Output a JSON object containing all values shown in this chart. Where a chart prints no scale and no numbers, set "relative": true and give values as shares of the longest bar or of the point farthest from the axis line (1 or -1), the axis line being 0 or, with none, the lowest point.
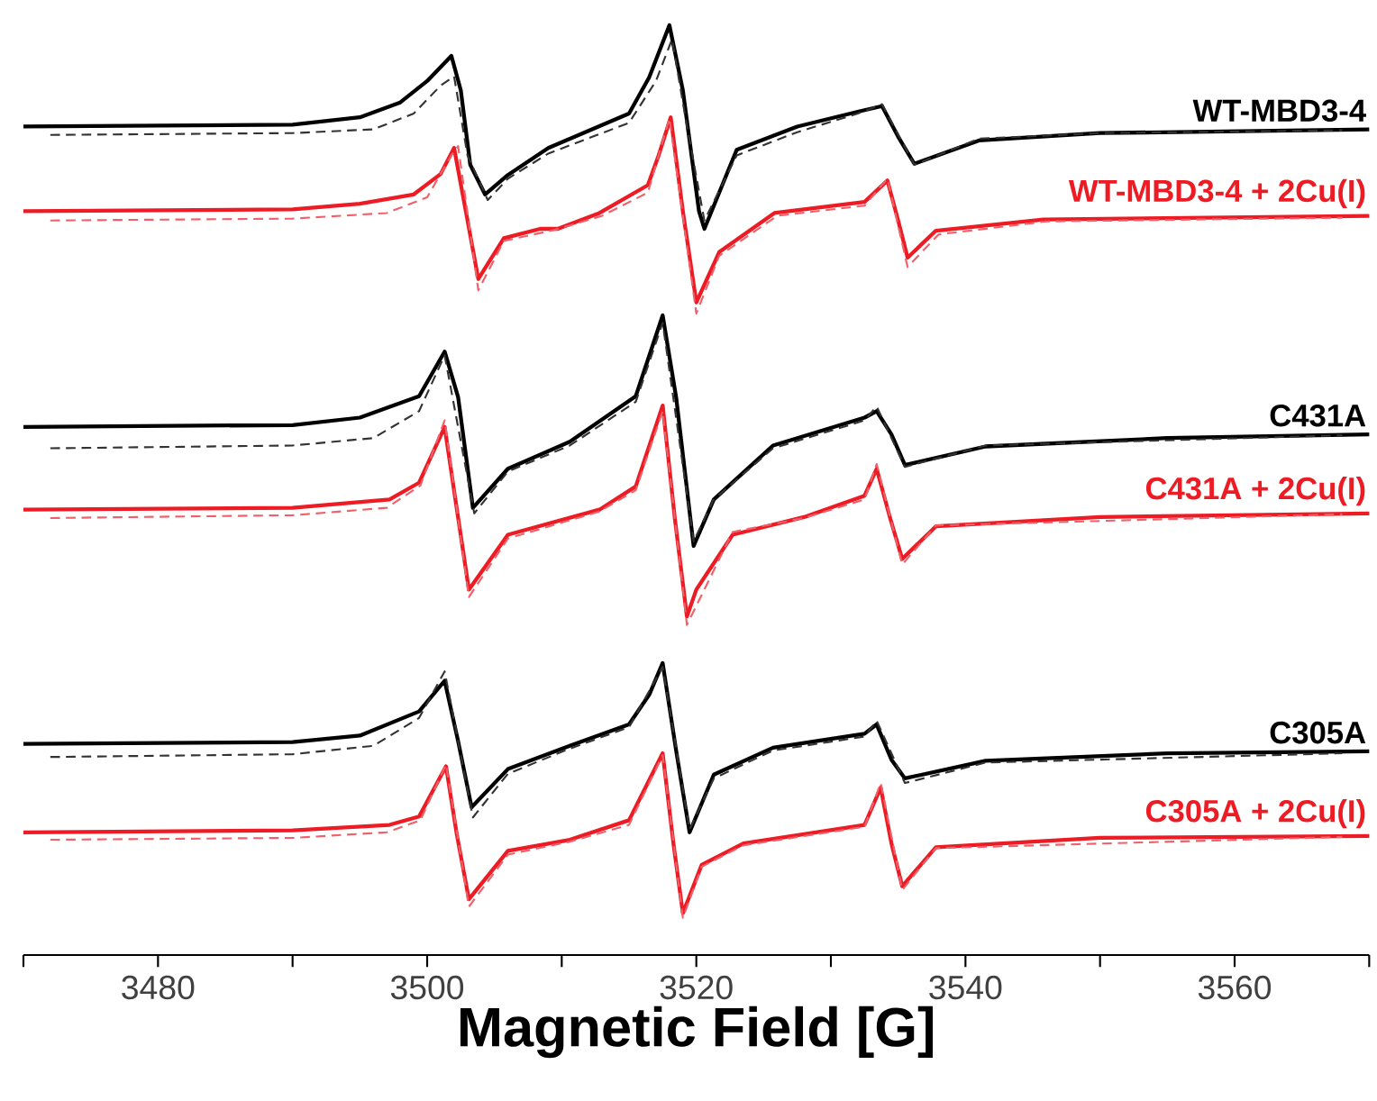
{
  "chart_data": {
    "type": "line",
    "relative": true,
    "xlabel": "Magnetic Field [G]",
    "xlim": [
      3470,
      3570
    ],
    "xticks": [
      {
        "value": 3470,
        "label": null
      },
      3480,
      {
        "value": 3490,
        "label": null
      },
      3500,
      {
        "value": 3510,
        "label": null
      },
      3520,
      {
        "value": 3530,
        "label": null
      },
      3540,
      {
        "value": 3550,
        "label": null
      },
      3560,
      {
        "value": 3570,
        "label": null
      }
    ],
    "series": [
      {
        "name": "WT-MBD3-4",
        "color": "#000000",
        "line_style": "solid",
        "x": [
          3470,
          3490,
          3495,
          3498,
          3500,
          3501.8,
          3502.5,
          3503.2,
          3504.3,
          3506,
          3509,
          3515,
          3516.5,
          3518,
          3519,
          3520.2,
          3520.6,
          3523,
          3527.5,
          3532,
          3533.8,
          3535,
          3536.2,
          3541,
          3550,
          3570
        ],
        "values": [
          0.891,
          0.893,
          0.901,
          0.917,
          0.94,
          0.967,
          0.93,
          0.85,
          0.818,
          0.839,
          0.868,
          0.905,
          0.944,
          1.0,
          0.93,
          0.8,
          0.781,
          0.866,
          0.891,
          0.907,
          0.913,
          0.88,
          0.851,
          0.876,
          0.884,
          0.888
        ]
      },
      {
        "color": "#333333",
        "line_style": "dashed",
        "x": [
          3472,
          3490,
          3496,
          3499,
          3501,
          3502,
          3503,
          3504.5,
          3506,
          3509,
          3515,
          3517,
          3518.2,
          3519.2,
          3520.6,
          3523,
          3527.5,
          3532,
          3533.8,
          3536.2,
          3541,
          3550,
          3568
        ],
        "values": [
          0.882,
          0.884,
          0.888,
          0.905,
          0.935,
          0.945,
          0.86,
          0.812,
          0.835,
          0.862,
          0.895,
          0.94,
          0.985,
          0.9,
          0.79,
          0.86,
          0.885,
          0.905,
          0.915,
          0.85,
          0.878,
          0.884,
          0.887
        ]
      },
      {
        "name": "WT-MBD3-4 + 2Cu(I)",
        "color": "#ed1c24",
        "line_style": "solid",
        "x": [
          3470,
          3490,
          3495,
          3499,
          3501,
          3502,
          3503,
          3503.8,
          3505.7,
          3508.4,
          3509.7,
          3512.8,
          3516.4,
          3517.2,
          3518.1,
          3519,
          3520,
          3521.7,
          3525.8,
          3532.5,
          3534.2,
          3535,
          3535.7,
          3537.8,
          3545.8,
          3570
        ],
        "values": [
          0.8,
          0.802,
          0.808,
          0.818,
          0.84,
          0.868,
          0.79,
          0.727,
          0.771,
          0.781,
          0.781,
          0.798,
          0.828,
          0.86,
          0.901,
          0.8,
          0.702,
          0.756,
          0.798,
          0.81,
          0.833,
          0.79,
          0.75,
          0.779,
          0.791,
          0.795
        ]
      },
      {
        "color": "#f0606a",
        "line_style": "dashed",
        "x": [
          3472,
          3490,
          3497,
          3500,
          3501.8,
          3502.3,
          3503.8,
          3505.7,
          3509.5,
          3513,
          3516.4,
          3518,
          3520,
          3521.7,
          3526,
          3532.5,
          3534.2,
          3535.7,
          3538,
          3546,
          3568
        ],
        "values": [
          0.79,
          0.792,
          0.798,
          0.815,
          0.86,
          0.87,
          0.715,
          0.768,
          0.78,
          0.795,
          0.82,
          0.9,
          0.69,
          0.752,
          0.795,
          0.806,
          0.835,
          0.74,
          0.775,
          0.789,
          0.793
        ]
      },
      {
        "name": "C431A",
        "color": "#000000",
        "line_style": "solid",
        "x": [
          3470,
          3490,
          3495,
          3499.4,
          3501.3,
          3502.3,
          3503.4,
          3506,
          3510.6,
          3515.5,
          3517.5,
          3518.5,
          3519.8,
          3521.3,
          3525.7,
          3532.5,
          3533.4,
          3534.5,
          3535.5,
          3541.5,
          3555,
          3570
        ],
        "values": [
          0.568,
          0.57,
          0.578,
          0.601,
          0.649,
          0.6,
          0.481,
          0.523,
          0.552,
          0.601,
          0.688,
          0.6,
          0.44,
          0.49,
          0.548,
          0.578,
          0.585,
          0.56,
          0.527,
          0.547,
          0.556,
          0.56
        ]
      },
      {
        "color": "#333333",
        "line_style": "dashed",
        "x": [
          3472,
          3490,
          3496,
          3499.4,
          3501.3,
          3503.5,
          3506,
          3510.6,
          3515.5,
          3517.5,
          3519.8,
          3521.3,
          3525.7,
          3532.5,
          3533.4,
          3535.5,
          3541.5,
          3568
        ],
        "values": [
          0.545,
          0.548,
          0.556,
          0.585,
          0.645,
          0.475,
          0.52,
          0.548,
          0.595,
          0.68,
          0.445,
          0.49,
          0.545,
          0.575,
          0.59,
          0.525,
          0.548,
          0.559
        ]
      },
      {
        "name": "C431A + 2Cu(I)",
        "color": "#ed1c24",
        "line_style": "solid",
        "x": [
          3470,
          3490,
          3497.2,
          3499.4,
          3501.3,
          3502.2,
          3503.1,
          3506,
          3512.8,
          3515.5,
          3517.5,
          3518.4,
          3519.3,
          3520,
          3522.7,
          3528,
          3532.5,
          3533.4,
          3534.4,
          3535.3,
          3537.8,
          3550,
          3570
        ],
        "values": [
          0.479,
          0.481,
          0.49,
          0.508,
          0.568,
          0.48,
          0.393,
          0.452,
          0.479,
          0.504,
          0.591,
          0.47,
          0.364,
          0.393,
          0.452,
          0.471,
          0.494,
          0.523,
          0.47,
          0.426,
          0.461,
          0.471,
          0.475
        ]
      },
      {
        "color": "#f0606a",
        "line_style": "dashed",
        "x": [
          3472,
          3490,
          3497,
          3499.5,
          3501.3,
          3503.1,
          3506,
          3512.8,
          3515.5,
          3517.5,
          3519.3,
          3522.7,
          3528,
          3532.5,
          3533.4,
          3535.3,
          3537.8,
          3568
        ],
        "values": [
          0.47,
          0.473,
          0.481,
          0.505,
          0.575,
          0.385,
          0.448,
          0.477,
          0.5,
          0.585,
          0.355,
          0.455,
          0.47,
          0.49,
          0.528,
          0.42,
          0.462,
          0.474
        ]
      },
      {
        "name": "C305A",
        "color": "#000000",
        "line_style": "solid",
        "x": [
          3470,
          3490,
          3495,
          3499.4,
          3501.3,
          3502.3,
          3503.3,
          3506,
          3510.6,
          3515,
          3516.5,
          3517.5,
          3518.5,
          3519.5,
          3521.3,
          3525.7,
          3532.5,
          3533.4,
          3534.5,
          3535.5,
          3541.5,
          3555,
          3570
        ],
        "values": [
          0.227,
          0.229,
          0.236,
          0.262,
          0.295,
          0.23,
          0.159,
          0.2,
          0.225,
          0.248,
          0.28,
          0.314,
          0.22,
          0.132,
          0.194,
          0.223,
          0.238,
          0.248,
          0.21,
          0.19,
          0.209,
          0.217,
          0.219
        ]
      },
      {
        "color": "#333333",
        "line_style": "dashed",
        "x": [
          3472,
          3490,
          3496,
          3499.4,
          3501.3,
          3503.4,
          3506,
          3510.6,
          3515,
          3517.5,
          3519.5,
          3521.3,
          3525.7,
          3532.5,
          3533.4,
          3535.5,
          3541.5,
          3568
        ],
        "values": [
          0.213,
          0.216,
          0.225,
          0.255,
          0.305,
          0.148,
          0.195,
          0.222,
          0.245,
          0.31,
          0.135,
          0.19,
          0.22,
          0.235,
          0.252,
          0.185,
          0.207,
          0.217
        ]
      },
      {
        "name": "C305A + 2Cu(I)",
        "color": "#ed1c24",
        "line_style": "solid",
        "x": [
          3470,
          3490,
          3497.2,
          3499.4,
          3501.4,
          3502.2,
          3503.1,
          3506,
          3510.6,
          3515,
          3517.5,
          3518.3,
          3519,
          3520.4,
          3523.5,
          3532.5,
          3533.7,
          3534.5,
          3535.3,
          3537.8,
          3550,
          3570
        ],
        "values": [
          0.132,
          0.134,
          0.14,
          0.149,
          0.203,
          0.13,
          0.06,
          0.112,
          0.124,
          0.145,
          0.217,
          0.12,
          0.045,
          0.097,
          0.12,
          0.14,
          0.18,
          0.12,
          0.074,
          0.116,
          0.126,
          0.128
        ]
      },
      {
        "color": "#f0606a",
        "line_style": "dashed",
        "x": [
          3472,
          3490,
          3497,
          3499.5,
          3501.4,
          3503.1,
          3506,
          3510.6,
          3515,
          3517.5,
          3519,
          3520.4,
          3523.5,
          3532.5,
          3533.7,
          3535.3,
          3537.8,
          3568
        ],
        "values": [
          0.124,
          0.126,
          0.132,
          0.145,
          0.205,
          0.052,
          0.108,
          0.122,
          0.14,
          0.215,
          0.04,
          0.095,
          0.118,
          0.138,
          0.185,
          0.07,
          0.115,
          0.127
        ]
      }
    ]
  }
}
